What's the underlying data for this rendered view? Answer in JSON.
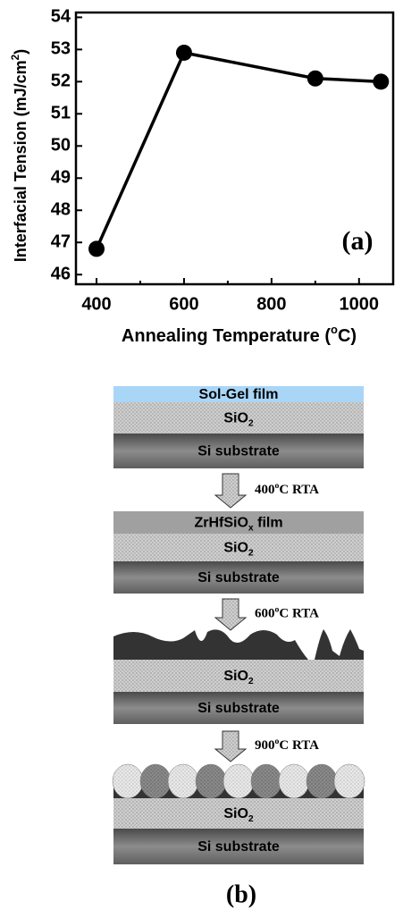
{
  "chart_data": {
    "type": "line",
    "x": [
      400,
      600,
      900,
      1050
    ],
    "values": [
      46.8,
      52.9,
      52.1,
      52.0
    ],
    "color": "#000000",
    "xlim": [
      353,
      1078
    ],
    "xticks": [
      400,
      600,
      800,
      1000
    ],
    "xminorticks": [
      500,
      700,
      900
    ],
    "ylim": [
      45.7,
      54.15
    ],
    "yticks": [
      46,
      47,
      48,
      49,
      50,
      51,
      52,
      53,
      54
    ],
    "xlabel": [
      "Annealing Temperature (",
      "o",
      "C)"
    ],
    "ylabel": [
      "Interfacial Tension (mJ/cm",
      "2",
      ")"
    ],
    "annotation": "(a)"
  },
  "diagram": {
    "stages": [
      {
        "layers": [
          [
            "Sol-Gel film"
          ],
          [
            "SiO",
            "2"
          ],
          [
            "Si substrate"
          ]
        ]
      },
      {
        "layers": [
          [
            "ZrHfSiO",
            "x",
            " film"
          ],
          [
            "SiO",
            "2"
          ],
          [
            "Si substrate"
          ]
        ]
      },
      {
        "layers": [
          [
            "SiO",
            "2"
          ],
          [
            "Si substrate"
          ]
        ]
      },
      {
        "layers": [
          [
            "SiO",
            "2"
          ],
          [
            "Si substrate"
          ]
        ]
      }
    ],
    "steps": [
      [
        "400",
        "o",
        "C RTA"
      ],
      [
        "600",
        "o",
        "C RTA"
      ],
      [
        "900",
        "o",
        "C RTA"
      ]
    ],
    "caption": "(b)"
  }
}
